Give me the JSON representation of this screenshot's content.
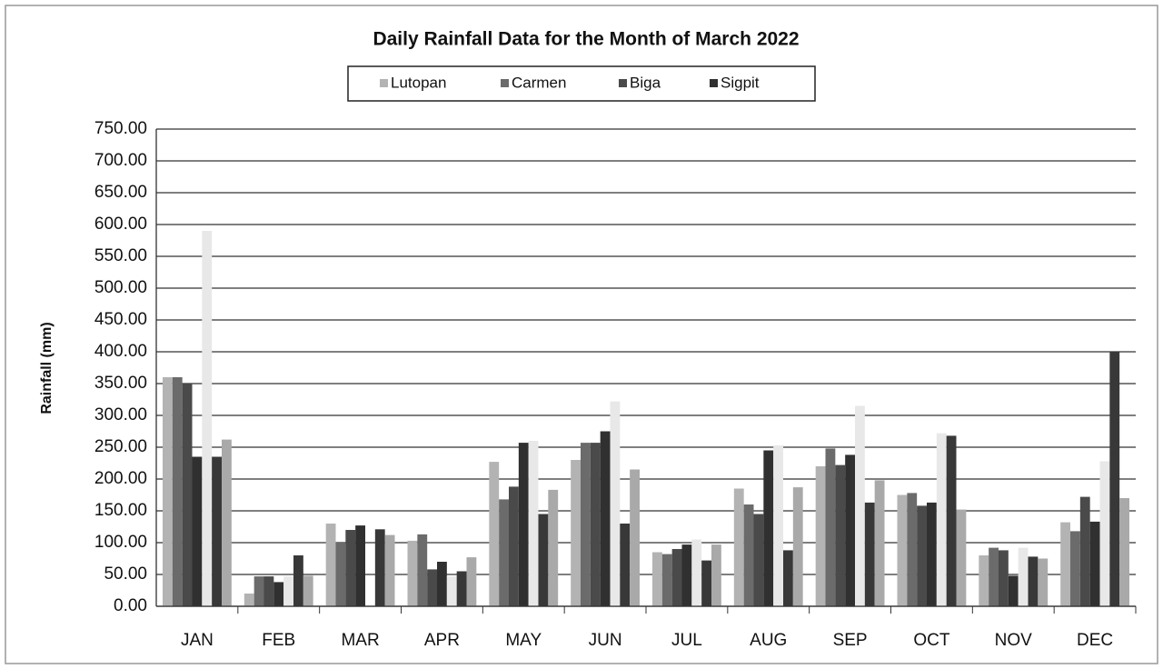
{
  "chart_data": {
    "type": "bar",
    "title": "Daily Rainfall Data for the Month of March 2022",
    "y_label": "Rainfall (mm)",
    "categories": [
      "JAN",
      "FEB",
      "MAR",
      "APR",
      "MAY",
      "JUN",
      "JUL",
      "AUG",
      "SEP",
      "OCT",
      "NOV",
      "DEC"
    ],
    "series": [
      {
        "name": "Lutopan",
        "color": "#b3b3b3",
        "values": [
          360,
          20,
          130,
          103,
          227,
          230,
          85,
          185,
          220,
          175,
          80,
          132
        ]
      },
      {
        "name": "Carmen",
        "color": "#6b6b6b",
        "values": [
          360,
          47,
          100,
          113,
          168,
          257,
          82,
          160,
          248,
          178,
          92,
          118
        ]
      },
      {
        "name": "Biga",
        "color": "#4a4a4a",
        "values": [
          350,
          47,
          120,
          58,
          188,
          257,
          90,
          145,
          222,
          158,
          88,
          172
        ]
      },
      {
        "name": "Sigpit",
        "color": "#303030",
        "values": [
          235,
          38,
          127,
          70,
          257,
          275,
          97,
          245,
          238,
          163,
          48,
          133
        ]
      },
      {
        "color": "#e8e8e8",
        "values": [
          590,
          47,
          0,
          47,
          260,
          322,
          105,
          253,
          315,
          272,
          92,
          228
        ]
      },
      {
        "color": "#383838",
        "values": [
          235,
          80,
          121,
          55,
          145,
          130,
          72,
          88,
          163,
          268,
          78,
          400
        ]
      },
      {
        "color": "#a9a9a9",
        "values": [
          262,
          48,
          112,
          77,
          183,
          215,
          97,
          187,
          198,
          152,
          75,
          170
        ]
      }
    ],
    "ylim": [
      0,
      750
    ],
    "yticks": [
      {
        "value": 0,
        "label": "0.00"
      },
      {
        "value": 50,
        "label": "50.00"
      },
      {
        "value": 100,
        "label": "100.00"
      },
      {
        "value": 150,
        "label": "150.00"
      },
      {
        "value": 200,
        "label": "200.00"
      },
      {
        "value": 250,
        "label": "250.00"
      },
      {
        "value": 300,
        "label": "300.00"
      },
      {
        "value": 350,
        "label": "350.00"
      },
      {
        "value": 400,
        "label": "400.00"
      },
      {
        "value": 450,
        "label": "450.00"
      },
      {
        "value": 500,
        "label": "500.00"
      },
      {
        "value": 550,
        "label": "550.00"
      },
      {
        "value": 600,
        "label": "600.00"
      },
      {
        "value": 650,
        "label": "650.00"
      },
      {
        "value": 700,
        "label": "700.00"
      },
      {
        "value": 750,
        "label": "750.00"
      }
    ],
    "grid": true
  }
}
